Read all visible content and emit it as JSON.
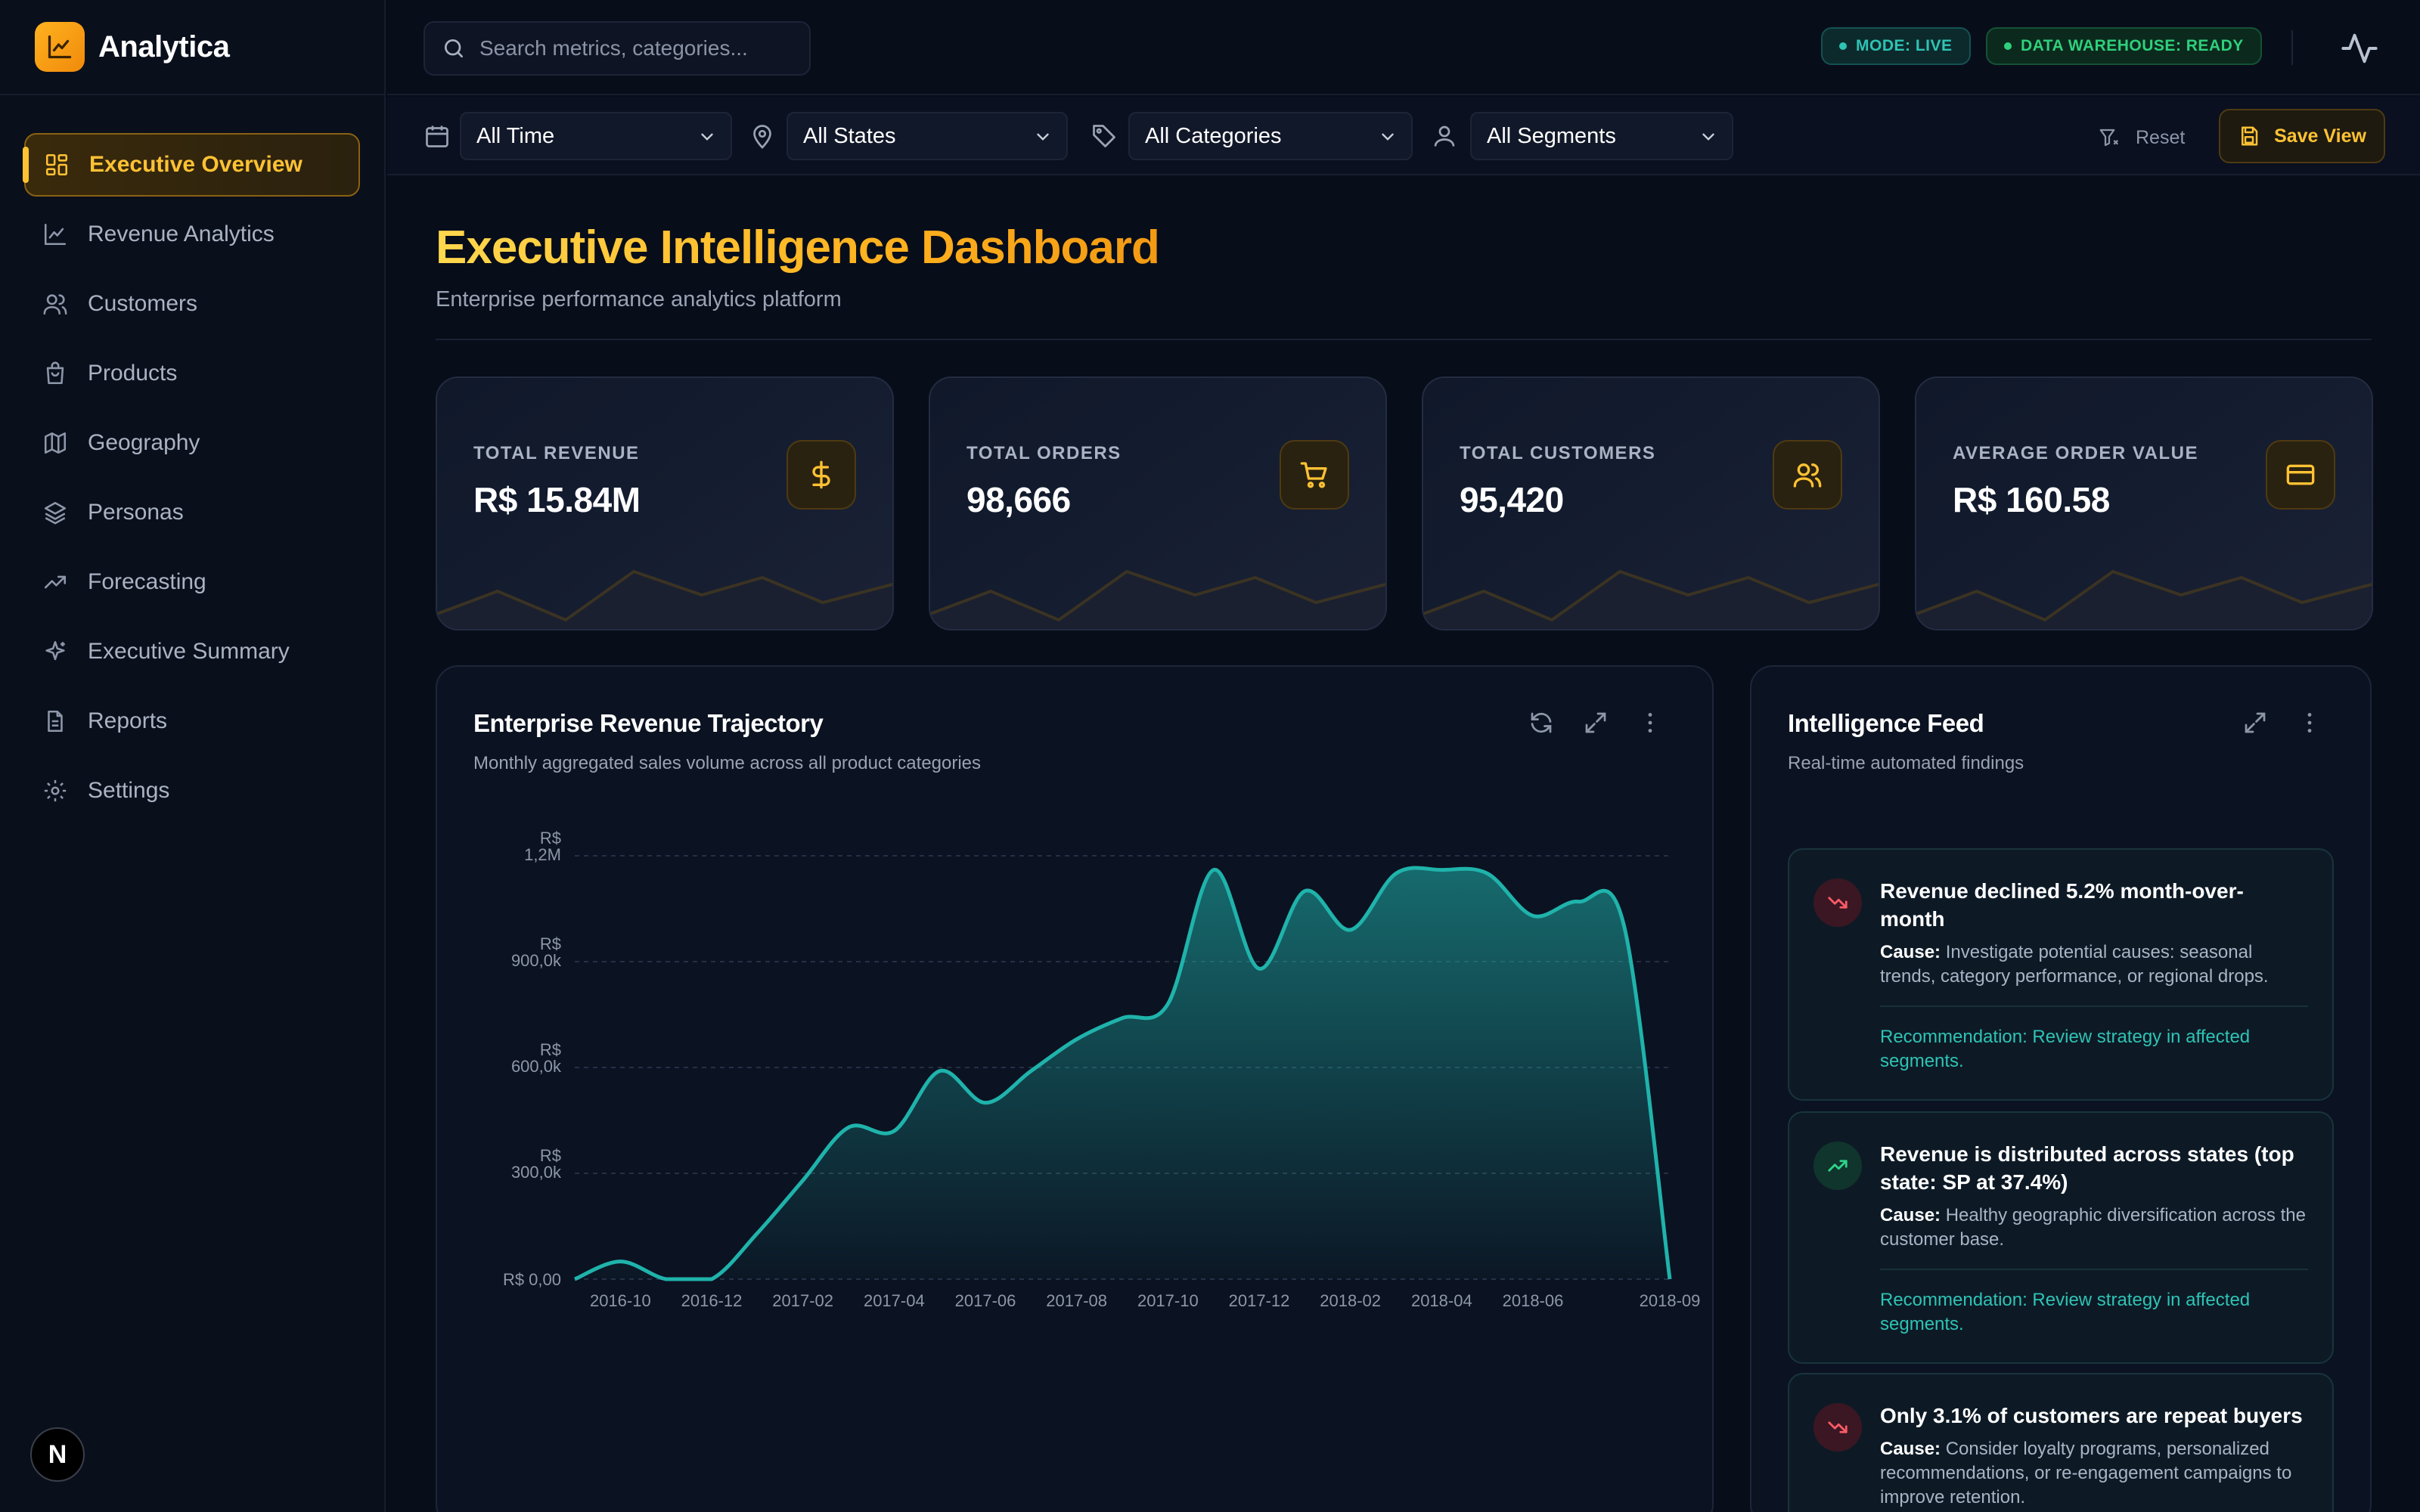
{
  "app": {
    "name": "Analytica"
  },
  "sidebar": {
    "items": [
      {
        "label": "Executive Overview",
        "icon": "layout-grid-icon",
        "active": true
      },
      {
        "label": "Revenue Analytics",
        "icon": "line-chart-icon"
      },
      {
        "label": "Customers",
        "icon": "users-icon"
      },
      {
        "label": "Products",
        "icon": "shopping-bag-icon"
      },
      {
        "label": "Geography",
        "icon": "map-icon"
      },
      {
        "label": "Personas",
        "icon": "layers-icon"
      },
      {
        "label": "Forecasting",
        "icon": "trending-up-icon"
      },
      {
        "label": "Executive Summary",
        "icon": "sparkles-icon"
      },
      {
        "label": "Reports",
        "icon": "file-text-icon"
      },
      {
        "label": "Settings",
        "icon": "gear-icon"
      }
    ],
    "footer_badge": "N"
  },
  "topbar": {
    "search_placeholder": "Search metrics, categories...",
    "mode_pill": "MODE: LIVE",
    "warehouse_pill": "DATA WAREHOUSE: READY"
  },
  "filters": {
    "time": "All Time",
    "states": "All States",
    "categories": "All Categories",
    "segments": "All Segments",
    "reset_label": "Reset",
    "save_label": "Save View"
  },
  "header": {
    "title": "Executive Intelligence Dashboard",
    "subtitle": "Enterprise performance analytics platform"
  },
  "kpis": [
    {
      "label": "TOTAL REVENUE",
      "value": "R$ 15.84M",
      "icon": "dollar-icon"
    },
    {
      "label": "TOTAL ORDERS",
      "value": "98,666",
      "icon": "cart-icon"
    },
    {
      "label": "TOTAL CUSTOMERS",
      "value": "95,420",
      "icon": "users-icon"
    },
    {
      "label": "AVERAGE ORDER VALUE",
      "value": "R$ 160.58",
      "icon": "credit-card-icon"
    }
  ],
  "revenue_card": {
    "title": "Enterprise Revenue Trajectory",
    "subtitle": "Monthly aggregated sales volume across all product categories"
  },
  "chart_data": {
    "type": "area",
    "title": "Enterprise Revenue Trajectory",
    "xlabel": "",
    "ylabel": "",
    "x_tick_labels": [
      "2016-10",
      "2016-12",
      "2017-02",
      "2017-04",
      "2017-06",
      "2017-08",
      "2017-10",
      "2017-12",
      "2018-02",
      "2018-04",
      "2018-06",
      "2018-09"
    ],
    "y_ticks": [
      {
        "value": 0,
        "label": "R$ 0,00"
      },
      {
        "value": 300000,
        "label": "R$ 300,0k"
      },
      {
        "value": 600000,
        "label": "R$ 600,0k"
      },
      {
        "value": 900000,
        "label": "R$ 900,0k"
      },
      {
        "value": 1200000,
        "label": "R$ 1,2M"
      }
    ],
    "ylim": [
      0,
      1200000
    ],
    "grid": true,
    "x": [
      "2016-09",
      "2016-10",
      "2016-11",
      "2016-12",
      "2017-01",
      "2017-02",
      "2017-03",
      "2017-04",
      "2017-05",
      "2017-06",
      "2017-07",
      "2017-08",
      "2017-09",
      "2017-10",
      "2017-11",
      "2017-12",
      "2018-01",
      "2018-02",
      "2018-03",
      "2018-04",
      "2018-05",
      "2018-06",
      "2018-07",
      "2018-08",
      "2018-09"
    ],
    "series": [
      {
        "values": [
          0,
          50000,
          0,
          0,
          130000,
          280000,
          430000,
          420000,
          590000,
          500000,
          590000,
          680000,
          740000,
          780000,
          1160000,
          880000,
          1100000,
          990000,
          1150000,
          1160000,
          1150000,
          1030000,
          1070000,
          1000000,
          0
        ],
        "color": "#1fb3ab"
      }
    ]
  },
  "feed": {
    "title": "Intelligence Feed",
    "subtitle": "Real-time automated findings",
    "cause_label": "Cause:",
    "items": [
      {
        "direction": "down",
        "title": "Revenue declined 5.2% month-over-month",
        "cause": "Investigate potential causes: seasonal trends, category performance, or regional drops.",
        "recommendation": "Recommendation: Review strategy in affected segments."
      },
      {
        "direction": "up",
        "title": "Revenue is distributed across states (top state: SP at 37.4%)",
        "cause": "Healthy geographic diversification across the customer base.",
        "recommendation": "Recommendation: Review strategy in affected segments."
      },
      {
        "direction": "down",
        "title": "Only 3.1% of customers are repeat buyers",
        "cause": "Consider loyalty programs, personalized recommendations, or re-engagement campaigns to improve retention."
      }
    ]
  },
  "colors": {
    "accent": "#ffc233",
    "teal": "#1fb3ab",
    "bg": "#080d1a"
  }
}
